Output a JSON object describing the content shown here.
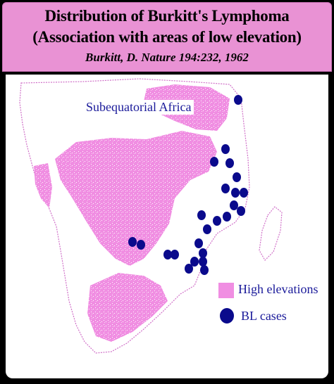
{
  "header": {
    "title_line1": "Distribution of Burkitt's Lymphoma",
    "title_line2": "(Association with areas of low elevation)",
    "citation": "Burkitt, D.  Nature 194:232, 1962"
  },
  "map": {
    "region_label": "Subequatorial Africa",
    "elevation_color": "#f08ee2",
    "case_color": "#0a0a8c",
    "outline_color": "#d070c8"
  },
  "legend": {
    "high_elevations_label": "High elevations",
    "bl_cases_label": "BL cases"
  }
}
